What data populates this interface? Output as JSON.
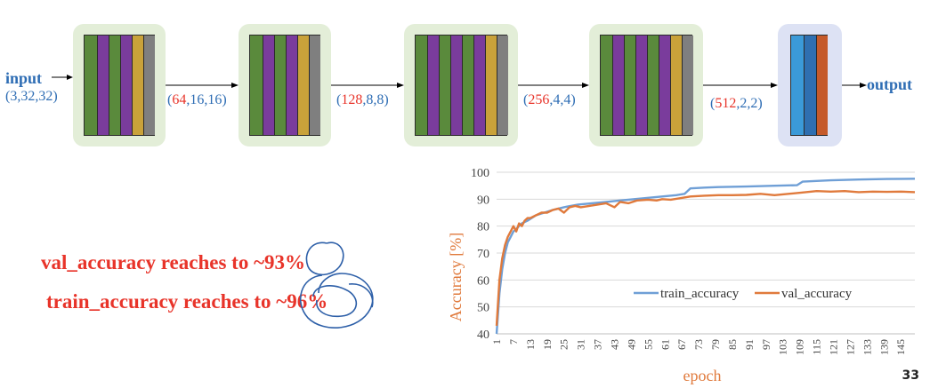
{
  "diagram": {
    "input_label": "input",
    "input_shape": "(3,32,32)",
    "output_label": "output",
    "edges": [
      {
        "channels": "64",
        "rest": ",16,16)"
      },
      {
        "channels": "128",
        "rest": ",8,8)"
      },
      {
        "channels": "256",
        "rest": ",4,4)"
      },
      {
        "channels": "512",
        "rest": ",2,2)"
      }
    ],
    "layer_colors": {
      "conv": "#5a8a3c",
      "relu": "#7a3c9c",
      "bn": "#c9a23a",
      "pool": "#7f7f7f",
      "fc": "#3b9ad8",
      "fc2": "#2f6fb0",
      "out": "#c55a2a"
    }
  },
  "notes": {
    "val": "val_accuracy reaches to ~93%",
    "train": "train_accuracy reaches to ~96%"
  },
  "page_number": "33",
  "chart_data": {
    "type": "line",
    "xlabel": "epoch",
    "ylabel": "Accuracy [%]",
    "ylim": [
      40,
      100
    ],
    "yticks": [
      40,
      50,
      60,
      70,
      80,
      90,
      100
    ],
    "xlim": [
      1,
      150
    ],
    "xticks": [
      1,
      7,
      13,
      19,
      25,
      31,
      37,
      43,
      49,
      55,
      61,
      67,
      73,
      79,
      85,
      91,
      97,
      103,
      109,
      115,
      121,
      127,
      133,
      139,
      145
    ],
    "grid": "horizontal",
    "legend_position": "bottom-right",
    "series": [
      {
        "name": "train_accuracy",
        "color": "#6f9fd6",
        "x": [
          1,
          2,
          3,
          4,
          5,
          6,
          7,
          8,
          10,
          12,
          15,
          18,
          21,
          25,
          30,
          35,
          40,
          45,
          50,
          55,
          60,
          65,
          68,
          70,
          75,
          80,
          90,
          100,
          108,
          110,
          120,
          130,
          140,
          150
        ],
        "values": [
          40,
          55,
          64,
          70,
          74,
          76,
          78,
          79,
          81,
          82,
          84,
          85,
          86,
          87,
          88,
          88.5,
          89,
          89.5,
          90,
          90.5,
          91,
          91.5,
          92,
          94,
          94.3,
          94.5,
          94.7,
          95,
          95.2,
          96.5,
          97,
          97.3,
          97.5,
          97.6
        ]
      },
      {
        "name": "val_accuracy",
        "color": "#e07a3c",
        "x": [
          1,
          2,
          3,
          4,
          5,
          6,
          7,
          8,
          9,
          10,
          11,
          12,
          13,
          15,
          17,
          19,
          21,
          23,
          25,
          27,
          29,
          31,
          34,
          37,
          40,
          43,
          45,
          48,
          51,
          55,
          58,
          60,
          63,
          66,
          70,
          75,
          80,
          85,
          90,
          95,
          100,
          105,
          110,
          115,
          120,
          125,
          130,
          135,
          140,
          145,
          150
        ],
        "values": [
          43,
          60,
          68,
          73,
          76,
          78,
          80,
          78,
          81,
          80,
          82,
          83,
          83,
          84,
          85,
          85,
          86,
          86.5,
          85,
          87,
          87.5,
          87,
          87.5,
          88,
          88.5,
          87,
          89,
          88.5,
          89.5,
          89.8,
          89.5,
          90,
          89.8,
          90.3,
          91,
          91.3,
          91.5,
          91.5,
          91.6,
          92,
          91.5,
          92,
          92.5,
          93,
          92.8,
          93,
          92.6,
          92.8,
          92.7,
          92.8,
          92.6
        ]
      }
    ]
  }
}
